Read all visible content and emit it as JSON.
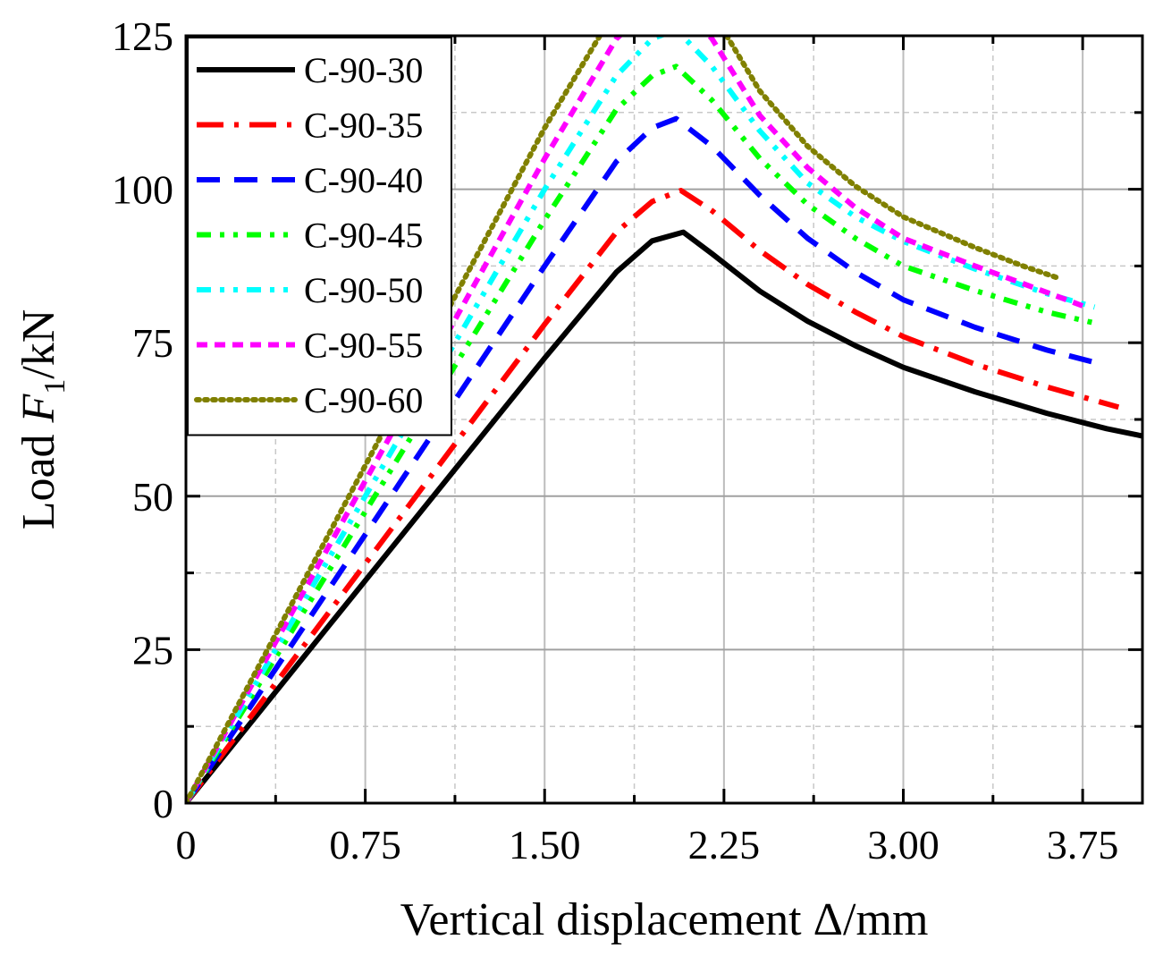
{
  "chart_data": {
    "type": "line",
    "xlabel": "Vertical displacement Δ/mm",
    "ylabel_parts": {
      "prefix": "Load ",
      "var": "F",
      "sub": "1",
      "suffix": "/kN"
    },
    "xlim": [
      0,
      4.0
    ],
    "ylim": [
      0,
      125
    ],
    "xticks": [
      0,
      0.75,
      1.5,
      2.25,
      3.0,
      3.75
    ],
    "xtick_labels": [
      "0",
      "0.75",
      "1.50",
      "2.25",
      "3.00",
      "3.75"
    ],
    "yticks": [
      0,
      25,
      50,
      75,
      100,
      125
    ],
    "ytick_labels": [
      "0",
      "25",
      "50",
      "75",
      "100",
      "125"
    ],
    "grid": true,
    "legend_position": "top-left",
    "series": [
      {
        "name": "C-90-30",
        "color": "#000000",
        "dash": "solid",
        "points": [
          [
            0,
            0
          ],
          [
            0.3,
            14.5
          ],
          [
            0.6,
            29
          ],
          [
            0.9,
            43.5
          ],
          [
            1.2,
            58
          ],
          [
            1.5,
            72.5
          ],
          [
            1.8,
            86.5
          ],
          [
            1.95,
            91.6
          ],
          [
            2.08,
            93.0
          ],
          [
            2.2,
            89.5
          ],
          [
            2.4,
            83.4
          ],
          [
            2.6,
            78.5
          ],
          [
            2.8,
            74.5
          ],
          [
            3.0,
            71.0
          ],
          [
            3.3,
            67.0
          ],
          [
            3.6,
            63.5
          ],
          [
            3.85,
            61.0
          ],
          [
            4.0,
            59.8
          ]
        ]
      },
      {
        "name": "C-90-35",
        "color": "#ff0000",
        "dash": "dashdot",
        "points": [
          [
            0,
            0
          ],
          [
            0.3,
            15.6
          ],
          [
            0.6,
            31.2
          ],
          [
            0.9,
            46.8
          ],
          [
            1.2,
            62.4
          ],
          [
            1.5,
            78.0
          ],
          [
            1.8,
            93.0
          ],
          [
            1.95,
            98.0
          ],
          [
            2.07,
            99.8
          ],
          [
            2.2,
            96.5
          ],
          [
            2.4,
            90.0
          ],
          [
            2.6,
            84.5
          ],
          [
            2.8,
            80.0
          ],
          [
            3.0,
            76.0
          ],
          [
            3.3,
            71.5
          ],
          [
            3.6,
            67.8
          ],
          [
            3.9,
            64.5
          ]
        ]
      },
      {
        "name": "C-90-40",
        "color": "#0000ff",
        "dash": "dash",
        "points": [
          [
            0,
            0
          ],
          [
            0.3,
            17.5
          ],
          [
            0.6,
            35.0
          ],
          [
            0.9,
            52.5
          ],
          [
            1.2,
            70.0
          ],
          [
            1.5,
            87.5
          ],
          [
            1.8,
            104.5
          ],
          [
            1.95,
            110.0
          ],
          [
            2.05,
            111.5
          ],
          [
            2.2,
            107.0
          ],
          [
            2.4,
            99.0
          ],
          [
            2.6,
            92.0
          ],
          [
            2.8,
            86.5
          ],
          [
            3.0,
            82.0
          ],
          [
            3.3,
            77.5
          ],
          [
            3.6,
            73.8
          ],
          [
            3.8,
            71.8
          ]
        ]
      },
      {
        "name": "C-90-45",
        "color": "#00ff00",
        "dash": "dashdotdot",
        "points": [
          [
            0,
            0
          ],
          [
            0.3,
            19.0
          ],
          [
            0.6,
            38.0
          ],
          [
            0.9,
            57.0
          ],
          [
            1.2,
            76.0
          ],
          [
            1.5,
            95.0
          ],
          [
            1.8,
            113.0
          ],
          [
            1.95,
            118.5
          ],
          [
            2.05,
            120.0
          ],
          [
            2.2,
            114.5
          ],
          [
            2.4,
            105.0
          ],
          [
            2.6,
            97.5
          ],
          [
            2.8,
            92.0
          ],
          [
            3.0,
            87.5
          ],
          [
            3.3,
            83.5
          ],
          [
            3.6,
            80.0
          ],
          [
            3.8,
            78.2
          ]
        ]
      },
      {
        "name": "C-90-50",
        "color": "#00ffff",
        "dash": "dashdotdot",
        "points": [
          [
            0,
            0
          ],
          [
            0.3,
            20.0
          ],
          [
            0.6,
            40.0
          ],
          [
            0.9,
            60.0
          ],
          [
            1.2,
            80.0
          ],
          [
            1.5,
            100.0
          ],
          [
            1.8,
            118.5
          ],
          [
            1.95,
            124.5
          ],
          [
            2.05,
            126.0
          ],
          [
            2.2,
            120.0
          ],
          [
            2.4,
            109.5
          ],
          [
            2.6,
            101.0
          ],
          [
            2.8,
            95.5
          ],
          [
            3.0,
            91.5
          ],
          [
            3.3,
            87.0
          ],
          [
            3.6,
            83.0
          ],
          [
            3.8,
            80.8
          ]
        ]
      },
      {
        "name": "C-90-55",
        "color": "#ff00ff",
        "dash": "dash-short",
        "points": [
          [
            0,
            0
          ],
          [
            0.3,
            21.0
          ],
          [
            0.6,
            42.0
          ],
          [
            0.9,
            63.0
          ],
          [
            1.2,
            84.0
          ],
          [
            1.5,
            105.0
          ],
          [
            1.8,
            124.5
          ],
          [
            1.95,
            130.0
          ],
          [
            2.05,
            131.0
          ],
          [
            2.2,
            124.5
          ],
          [
            2.4,
            112.0
          ],
          [
            2.6,
            103.5
          ],
          [
            2.8,
            97.0
          ],
          [
            3.0,
            92.0
          ],
          [
            3.3,
            87.5
          ],
          [
            3.6,
            83.2
          ],
          [
            3.75,
            81.0
          ]
        ]
      },
      {
        "name": "C-90-60",
        "color": "#808000",
        "dash": "dot",
        "points": [
          [
            0,
            0
          ],
          [
            0.3,
            22.0
          ],
          [
            0.6,
            44.0
          ],
          [
            0.9,
            66.0
          ],
          [
            1.2,
            88.0
          ],
          [
            1.5,
            110.0
          ],
          [
            1.8,
            129.5
          ],
          [
            1.95,
            135.0
          ],
          [
            2.05,
            136.0
          ],
          [
            2.2,
            129.0
          ],
          [
            2.4,
            116.0
          ],
          [
            2.6,
            107.0
          ],
          [
            2.8,
            100.5
          ],
          [
            3.0,
            95.5
          ],
          [
            3.3,
            90.5
          ],
          [
            3.5,
            87.5
          ],
          [
            3.65,
            85.5
          ]
        ]
      }
    ]
  }
}
